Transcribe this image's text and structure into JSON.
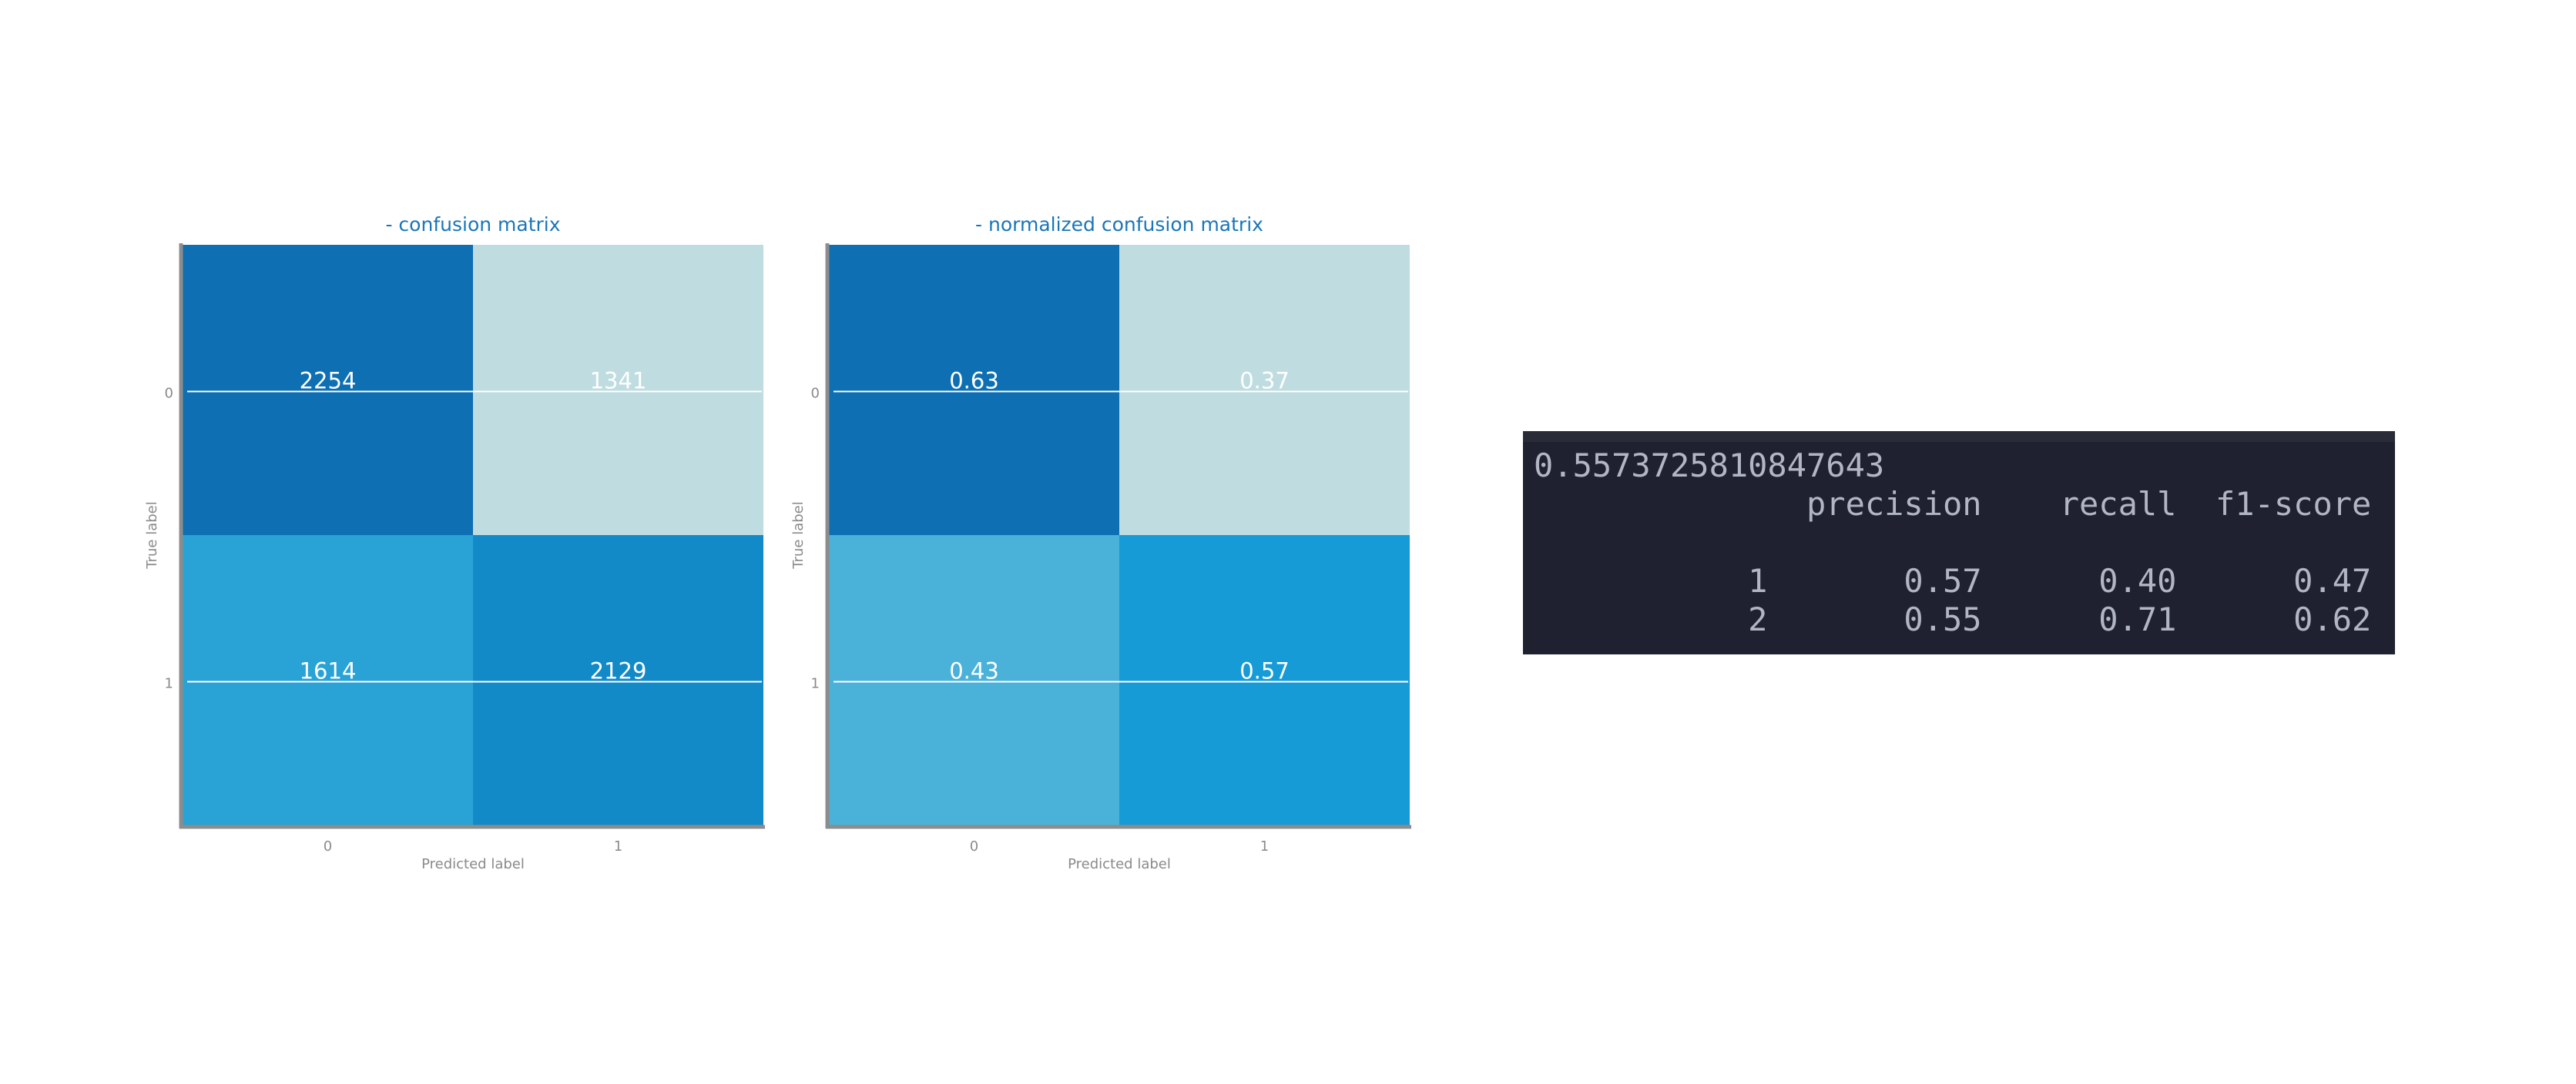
{
  "chart_data": [
    {
      "type": "heatmap",
      "title": "- confusion matrix",
      "xlabel": "Predicted label",
      "ylabel": "True label",
      "x_ticks": [
        "0",
        "1"
      ],
      "y_ticks": [
        "0",
        "1"
      ],
      "values": [
        [
          2254,
          1341
        ],
        [
          1614,
          2129
        ]
      ],
      "cell_labels": [
        [
          "2254",
          "1341"
        ],
        [
          "1614",
          "2129"
        ]
      ],
      "cell_colors": [
        [
          "#0e6fb3",
          "#bfdde1"
        ],
        [
          "#29a3d6",
          "#128ac8"
        ]
      ]
    },
    {
      "type": "heatmap",
      "title": "- normalized confusion matrix",
      "xlabel": "Predicted label",
      "ylabel": "True label",
      "x_ticks": [
        "0",
        "1"
      ],
      "y_ticks": [
        "0",
        "1"
      ],
      "values": [
        [
          0.63,
          0.37
        ],
        [
          0.43,
          0.57
        ]
      ],
      "cell_labels": [
        [
          "0.63",
          "0.37"
        ],
        [
          "0.43",
          "0.57"
        ]
      ],
      "cell_colors": [
        [
          "#0e6fb3",
          "#bfdde1"
        ],
        [
          "#4ab1d8",
          "#169bd6"
        ]
      ]
    }
  ],
  "colors": {
    "title": "#1a76b8",
    "axis_text": "#8a8a8a",
    "axis_line": "#8c8c8c",
    "cell_text": "#ffffff",
    "grid_line": "#ffffff"
  },
  "report": {
    "lines": [
      "0.5573725810847643",
      "              precision    recall  f1-score",
      "",
      "           1       0.57      0.40      0.47",
      "           2       0.55      0.71      0.62"
    ]
  }
}
